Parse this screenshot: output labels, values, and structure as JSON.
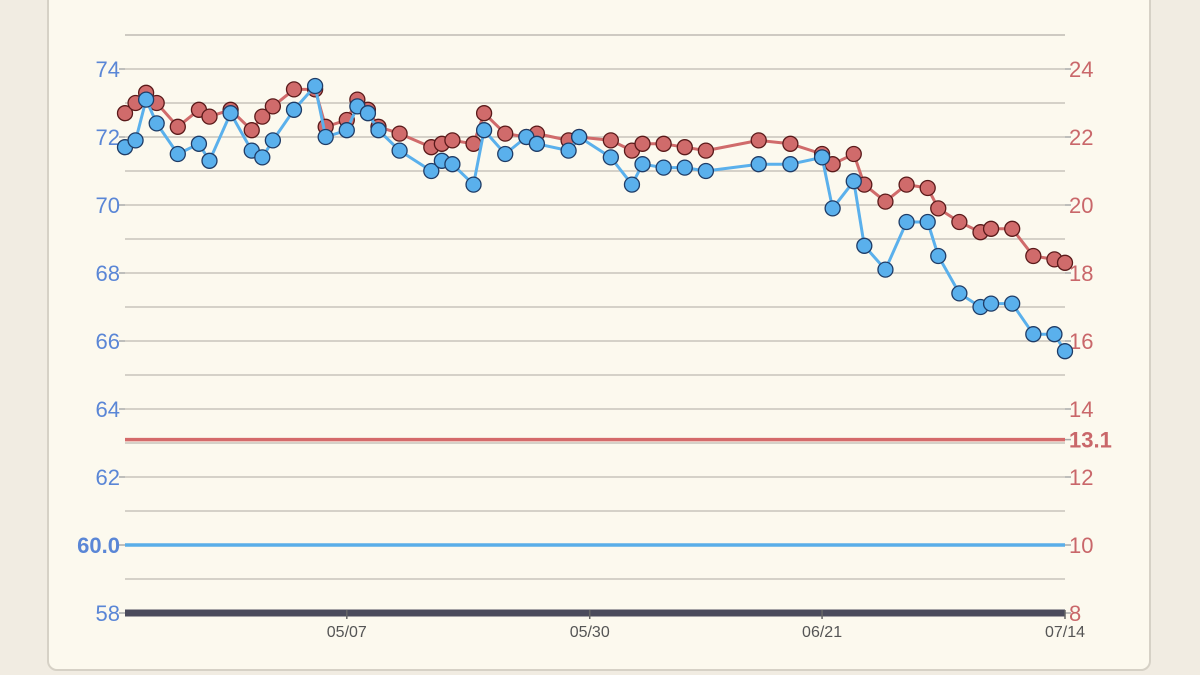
{
  "chart_data": {
    "type": "line",
    "title": "",
    "xlabel": "",
    "ylabel": "",
    "x_tick_labels": [
      "05/07",
      "05/30",
      "06/21",
      "07/14"
    ],
    "y_left": {
      "ticks": [
        58,
        60,
        62,
        64,
        66,
        68,
        70,
        72,
        74
      ],
      "tick_labels": [
        "58",
        "60.0",
        "62",
        "64",
        "66",
        "68",
        "70",
        "72",
        "74"
      ],
      "lim": [
        58,
        75.5
      ],
      "color": "#5a86d6"
    },
    "y_right": {
      "ticks": [
        8,
        10,
        12,
        13.1,
        14,
        16,
        18,
        20,
        22,
        24
      ],
      "tick_labels": [
        "8",
        "10",
        "12",
        "13.1",
        "14",
        "16",
        "18",
        "20",
        "22",
        "24"
      ],
      "lim": [
        8,
        25.5
      ],
      "color": "#c9676a"
    },
    "reference_lines": [
      {
        "axis": "left",
        "value": 60.0,
        "label": "60.0",
        "color": "#5aaee8"
      },
      {
        "axis": "right",
        "value": 13.1,
        "label": "13.1",
        "color": "#d46a6a"
      }
    ],
    "grid": true,
    "series": [
      {
        "axis": "left",
        "color": "#5ab0ec",
        "edge": "#1f3c66",
        "x": [
          "04/16",
          "04/17",
          "04/18",
          "04/19",
          "04/21",
          "04/23",
          "04/24",
          "04/26",
          "04/28",
          "04/29",
          "04/30",
          "05/02",
          "05/04",
          "05/05",
          "05/07",
          "05/08",
          "05/09",
          "05/10",
          "05/12",
          "05/15",
          "05/16",
          "05/17",
          "05/19",
          "05/20",
          "05/22",
          "05/24",
          "05/25",
          "05/28",
          "05/29",
          "06/01",
          "06/03",
          "06/04",
          "06/06",
          "06/08",
          "06/10",
          "06/15",
          "06/18",
          "06/21",
          "06/22",
          "06/24",
          "06/25",
          "06/27",
          "06/29",
          "07/01",
          "07/02",
          "07/04",
          "07/06",
          "07/07",
          "07/09",
          "07/11",
          "07/13",
          "07/14"
        ],
        "values": [
          71.7,
          71.9,
          73.1,
          72.4,
          71.5,
          71.8,
          71.3,
          72.7,
          71.6,
          71.4,
          71.9,
          72.8,
          73.5,
          72.0,
          72.2,
          72.9,
          72.7,
          72.2,
          71.6,
          71.0,
          71.3,
          71.2,
          70.6,
          72.2,
          71.5,
          72.0,
          71.8,
          71.6,
          72.0,
          71.4,
          70.6,
          71.2,
          71.1,
          71.1,
          71.0,
          71.2,
          71.2,
          71.4,
          69.9,
          70.7,
          68.8,
          68.1,
          69.5,
          69.5,
          68.5,
          67.4,
          67.0,
          67.1,
          67.1,
          66.2,
          66.2,
          65.7
        ]
      },
      {
        "axis": "right",
        "color": "#d06b6b",
        "edge": "#5a1a1a",
        "x": [
          "04/16",
          "04/17",
          "04/18",
          "04/19",
          "04/21",
          "04/23",
          "04/24",
          "04/26",
          "04/28",
          "04/29",
          "04/30",
          "05/02",
          "05/04",
          "05/05",
          "05/07",
          "05/08",
          "05/09",
          "05/10",
          "05/12",
          "05/15",
          "05/16",
          "05/17",
          "05/19",
          "05/20",
          "05/22",
          "05/24",
          "05/25",
          "05/28",
          "05/29",
          "06/01",
          "06/03",
          "06/04",
          "06/06",
          "06/08",
          "06/10",
          "06/15",
          "06/18",
          "06/21",
          "06/22",
          "06/24",
          "06/25",
          "06/27",
          "06/29",
          "07/01",
          "07/02",
          "07/04",
          "07/06",
          "07/07",
          "07/09",
          "07/11",
          "07/13",
          "07/14"
        ],
        "values": [
          22.7,
          23.0,
          23.3,
          23.0,
          22.3,
          22.8,
          22.6,
          22.8,
          22.2,
          22.6,
          22.9,
          23.4,
          23.4,
          22.3,
          22.5,
          23.1,
          22.8,
          22.3,
          22.1,
          21.7,
          21.8,
          21.9,
          21.8,
          22.7,
          22.1,
          22.0,
          22.1,
          21.9,
          22.0,
          21.9,
          21.6,
          21.8,
          21.8,
          21.7,
          21.6,
          21.9,
          21.8,
          21.5,
          21.2,
          21.5,
          20.6,
          20.1,
          20.6,
          20.5,
          19.9,
          19.5,
          19.2,
          19.3,
          19.3,
          18.5,
          18.4,
          18.3
        ]
      }
    ]
  }
}
